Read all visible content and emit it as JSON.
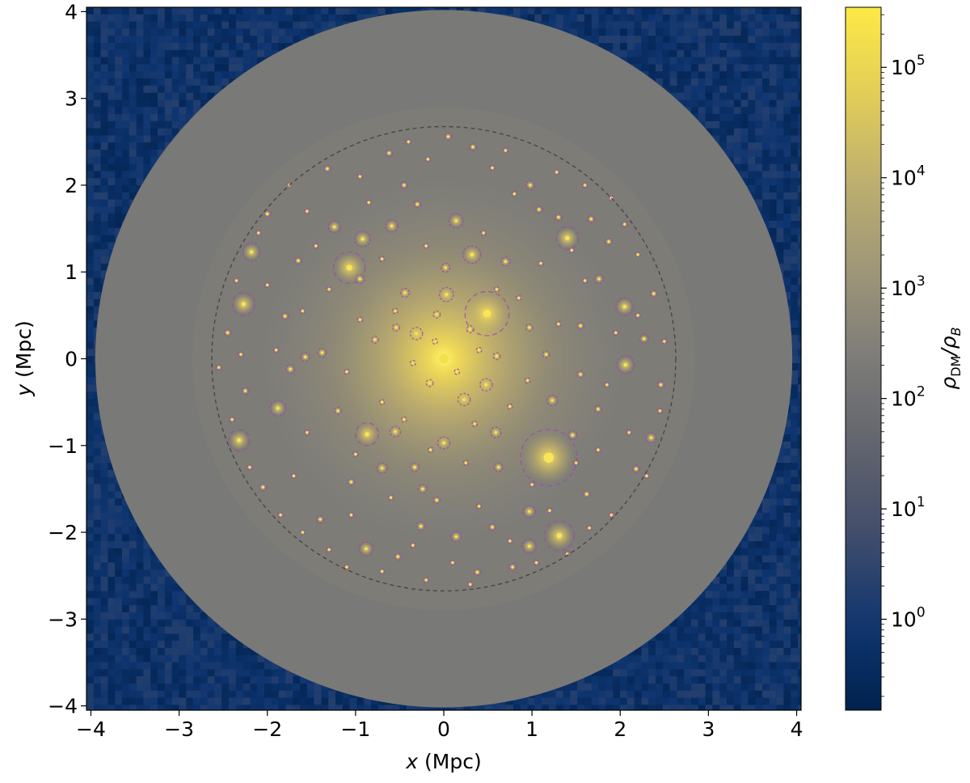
{
  "chart_data": {
    "type": "heatmap",
    "title": "",
    "xlabel": {
      "var": "x",
      "unit": " (Mpc)"
    },
    "ylabel": {
      "var": "y",
      "unit": " (Mpc)"
    },
    "xlim": [
      -4.05,
      4.05
    ],
    "ylim": [
      -4.05,
      4.05
    ],
    "x_ticks": [
      -4,
      -3,
      -2,
      -1,
      0,
      1,
      2,
      3,
      4
    ],
    "y_ticks": [
      -4,
      -3,
      -2,
      -1,
      0,
      1,
      2,
      3,
      4
    ],
    "x_tick_labels": [
      "−4",
      "−3",
      "−2",
      "−1",
      "0",
      "1",
      "2",
      "3",
      "4"
    ],
    "y_tick_labels": [
      "−4",
      "−3",
      "−2",
      "−1",
      "0",
      "1",
      "2",
      "3",
      "4"
    ],
    "colormap": "cividis",
    "colorbar": {
      "label": "ρDM/ρB",
      "scale": "log",
      "range": [
        0.15,
        350000
      ],
      "ticks": [
        1,
        10,
        100,
        1000,
        10000,
        100000
      ],
      "tick_labels": [
        {
          "base": "10",
          "exp": "0"
        },
        {
          "base": "10",
          "exp": "1"
        },
        {
          "base": "10",
          "exp": "2"
        },
        {
          "base": "10",
          "exp": "3"
        },
        {
          "base": "10",
          "exp": "4"
        },
        {
          "base": "10",
          "exp": "5"
        }
      ]
    },
    "background_density": 0.7,
    "outer_sphere": {
      "radius_mpc": 3.95,
      "density": 180
    },
    "virial_boundary": {
      "radius_mpc": 2.63,
      "style": "dashed",
      "color": "#444444"
    },
    "central_halo": {
      "x": 0.0,
      "y": 0.0,
      "peak_density": 200000
    },
    "subhalos": [
      {
        "x": 1.19,
        "y": -1.14,
        "r": 0.32
      },
      {
        "x": 0.49,
        "y": 0.52,
        "r": 0.25
      },
      {
        "x": -1.07,
        "y": 1.05,
        "r": 0.18
      },
      {
        "x": 1.31,
        "y": -2.04,
        "r": 0.17
      },
      {
        "x": 1.4,
        "y": 1.39,
        "r": 0.13
      },
      {
        "x": -2.27,
        "y": 0.63,
        "r": 0.13
      },
      {
        "x": -2.32,
        "y": -0.94,
        "r": 0.12
      },
      {
        "x": -0.87,
        "y": -0.87,
        "r": 0.13
      },
      {
        "x": -2.18,
        "y": 1.23,
        "r": 0.1
      },
      {
        "x": 2.05,
        "y": 0.6,
        "r": 0.1
      },
      {
        "x": 2.06,
        "y": -0.07,
        "r": 0.1
      },
      {
        "x": -1.88,
        "y": -0.57,
        "r": 0.09
      },
      {
        "x": 0.32,
        "y": 1.2,
        "r": 0.1
      },
      {
        "x": -0.92,
        "y": 1.38,
        "r": 0.09
      },
      {
        "x": -0.88,
        "y": -2.19,
        "r": 0.08
      },
      {
        "x": 0.97,
        "y": -2.16,
        "r": 0.08
      },
      {
        "x": 0.97,
        "y": -1.76,
        "r": 0.07
      },
      {
        "x": 0.03,
        "y": 0.74,
        "r": 0.08
      },
      {
        "x": 0.14,
        "y": 1.59,
        "r": 0.08
      },
      {
        "x": -0.59,
        "y": 1.53,
        "r": 0.07
      },
      {
        "x": -1.24,
        "y": 1.52,
        "r": 0.07
      },
      {
        "x": 0.23,
        "y": -0.47,
        "r": 0.07
      },
      {
        "x": 0.48,
        "y": -0.3,
        "r": 0.07
      },
      {
        "x": 0.14,
        "y": -2.05,
        "r": 0.06
      },
      {
        "x": 0.0,
        "y": -0.97,
        "r": 0.07
      },
      {
        "x": -0.31,
        "y": 0.29,
        "r": 0.07
      },
      {
        "x": 2.35,
        "y": -0.91,
        "r": 0.06
      },
      {
        "x": 1.23,
        "y": -0.48,
        "r": 0.06
      },
      {
        "x": -0.7,
        "y": -1.26,
        "r": 0.06
      },
      {
        "x": -0.55,
        "y": -0.84,
        "r": 0.06
      },
      {
        "x": 0.59,
        "y": -0.85,
        "r": 0.06
      },
      {
        "x": 0.98,
        "y": 2.0,
        "r": 0.05
      },
      {
        "x": 1.76,
        "y": 0.92,
        "r": 0.05
      },
      {
        "x": -1.38,
        "y": 0.07,
        "r": 0.05
      },
      {
        "x": -1.74,
        "y": -0.12,
        "r": 0.05
      },
      {
        "x": -0.26,
        "y": -1.93,
        "r": 0.05
      },
      {
        "x": 0.62,
        "y": -1.25,
        "r": 0.05
      },
      {
        "x": -0.24,
        "y": -1.5,
        "r": 0.05
      },
      {
        "x": 1.46,
        "y": -0.88,
        "r": 0.05
      },
      {
        "x": 2.27,
        "y": 0.23,
        "r": 0.05
      },
      {
        "x": -1.57,
        "y": 0.02,
        "r": 0.05
      },
      {
        "x": -0.44,
        "y": 0.76,
        "r": 0.05
      },
      {
        "x": 0.02,
        "y": 1.05,
        "r": 0.05
      },
      {
        "x": -0.95,
        "y": 0.92,
        "r": 0.05
      },
      {
        "x": 0.7,
        "y": 1.12,
        "r": 0.05
      },
      {
        "x": -0.33,
        "y": -1.25,
        "r": 0.05
      },
      {
        "x": 0.33,
        "y": 2.44,
        "r": 0.04
      },
      {
        "x": 0.05,
        "y": 2.56,
        "r": 0.04
      },
      {
        "x": -0.62,
        "y": 2.37,
        "r": 0.04
      },
      {
        "x": 1.67,
        "y": 1.61,
        "r": 0.04
      },
      {
        "x": -1.65,
        "y": 1.13,
        "r": 0.04
      },
      {
        "x": -1.8,
        "y": 0.49,
        "r": 0.04
      },
      {
        "x": 1.55,
        "y": 0.38,
        "r": 0.04
      },
      {
        "x": 1.16,
        "y": 0.05,
        "r": 0.04
      },
      {
        "x": 0.97,
        "y": 0.36,
        "r": 0.04
      },
      {
        "x": -0.08,
        "y": 0.51,
        "r": 0.04
      },
      {
        "x": 0.6,
        "y": 0.03,
        "r": 0.04
      },
      {
        "x": -0.54,
        "y": 0.36,
        "r": 0.04
      },
      {
        "x": -0.78,
        "y": 0.22,
        "r": 0.04
      },
      {
        "x": -1.2,
        "y": -0.6,
        "r": 0.04
      },
      {
        "x": -1.05,
        "y": -1.42,
        "r": 0.04
      },
      {
        "x": -0.52,
        "y": -2.28,
        "r": 0.04
      },
      {
        "x": 0.38,
        "y": -2.46,
        "r": 0.04
      },
      {
        "x": 0.78,
        "y": -2.4,
        "r": 0.04
      },
      {
        "x": 1.62,
        "y": -1.56,
        "r": 0.04
      },
      {
        "x": 2.18,
        "y": -1.27,
        "r": 0.04
      },
      {
        "x": 2.46,
        "y": -0.3,
        "r": 0.04
      },
      {
        "x": 2.38,
        "y": 0.75,
        "r": 0.04
      },
      {
        "x": 1.87,
        "y": 1.35,
        "r": 0.04
      },
      {
        "x": 1.3,
        "y": 1.63,
        "r": 0.04
      },
      {
        "x": -0.3,
        "y": 1.78,
        "r": 0.04
      },
      {
        "x": -1.32,
        "y": 2.19,
        "r": 0.04
      },
      {
        "x": -2.0,
        "y": 1.67,
        "r": 0.04
      },
      {
        "x": -2.45,
        "y": 0.3,
        "r": 0.04
      },
      {
        "x": -2.25,
        "y": -0.37,
        "r": 0.04
      },
      {
        "x": -2.05,
        "y": -1.48,
        "r": 0.04
      },
      {
        "x": -1.4,
        "y": -1.85,
        "r": 0.04
      },
      {
        "x": -0.08,
        "y": -1.63,
        "r": 0.04
      },
      {
        "x": 0.55,
        "y": -1.94,
        "r": 0.04
      },
      {
        "x": 1.75,
        "y": -0.58,
        "r": 0.04
      },
      {
        "x": 1.55,
        "y": -0.18,
        "r": 0.04
      },
      {
        "x": -0.16,
        "y": -0.28,
        "r": 0.04
      },
      {
        "x": 0.3,
        "y": 0.34,
        "r": 0.04
      },
      {
        "x": 1.08,
        "y": 1.72,
        "r": 0.04
      },
      {
        "x": -0.45,
        "y": 2.0,
        "r": 0.04
      },
      {
        "x": 1.28,
        "y": 2.15,
        "r": 0.03
      },
      {
        "x": -0.18,
        "y": 2.3,
        "r": 0.03
      },
      {
        "x": 0.7,
        "y": 2.4,
        "r": 0.03
      },
      {
        "x": -0.95,
        "y": 2.1,
        "r": 0.03
      },
      {
        "x": 1.9,
        "y": 1.85,
        "r": 0.03
      },
      {
        "x": -1.55,
        "y": 1.7,
        "r": 0.03
      },
      {
        "x": 2.2,
        "y": 1.2,
        "r": 0.03
      },
      {
        "x": -2.35,
        "y": 0.9,
        "r": 0.03
      },
      {
        "x": 2.5,
        "y": 0.2,
        "r": 0.03
      },
      {
        "x": -2.55,
        "y": -0.1,
        "r": 0.03
      },
      {
        "x": 2.45,
        "y": -0.6,
        "r": 0.03
      },
      {
        "x": -2.4,
        "y": -0.7,
        "r": 0.03
      },
      {
        "x": 2.3,
        "y": -1.35,
        "r": 0.03
      },
      {
        "x": -2.2,
        "y": -1.25,
        "r": 0.03
      },
      {
        "x": 1.9,
        "y": -1.8,
        "r": 0.03
      },
      {
        "x": -1.85,
        "y": -1.8,
        "r": 0.03
      },
      {
        "x": 1.4,
        "y": -2.25,
        "r": 0.03
      },
      {
        "x": -1.3,
        "y": -2.2,
        "r": 0.03
      },
      {
        "x": 0.75,
        "y": -2.1,
        "r": 0.03
      },
      {
        "x": -0.7,
        "y": -2.45,
        "r": 0.03
      },
      {
        "x": 0.1,
        "y": -2.35,
        "r": 0.03
      },
      {
        "x": -0.35,
        "y": -2.15,
        "r": 0.03
      },
      {
        "x": 1.0,
        "y": -1.45,
        "r": 0.03
      },
      {
        "x": -1.0,
        "y": -1.1,
        "r": 0.03
      },
      {
        "x": 1.5,
        "y": -1.2,
        "r": 0.03
      },
      {
        "x": -1.55,
        "y": -0.85,
        "r": 0.03
      },
      {
        "x": 1.85,
        "y": -0.3,
        "r": 0.03
      },
      {
        "x": -1.9,
        "y": 0.1,
        "r": 0.03
      },
      {
        "x": 1.95,
        "y": 0.3,
        "r": 0.03
      },
      {
        "x": -1.6,
        "y": 0.55,
        "r": 0.03
      },
      {
        "x": 1.6,
        "y": 0.9,
        "r": 0.03
      },
      {
        "x": -1.3,
        "y": 0.8,
        "r": 0.03
      },
      {
        "x": 1.1,
        "y": 1.1,
        "r": 0.03
      },
      {
        "x": -0.7,
        "y": 1.15,
        "r": 0.03
      },
      {
        "x": 0.45,
        "y": 1.45,
        "r": 0.03
      },
      {
        "x": -0.2,
        "y": 1.3,
        "r": 0.03
      },
      {
        "x": 0.85,
        "y": 0.7,
        "r": 0.03
      },
      {
        "x": -0.95,
        "y": 0.45,
        "r": 0.03
      },
      {
        "x": 1.3,
        "y": 0.4,
        "r": 0.03
      },
      {
        "x": -1.1,
        "y": -0.15,
        "r": 0.03
      },
      {
        "x": 0.95,
        "y": -0.25,
        "r": 0.03
      },
      {
        "x": -0.7,
        "y": -0.5,
        "r": 0.03
      },
      {
        "x": 0.75,
        "y": -0.55,
        "r": 0.03
      },
      {
        "x": -0.45,
        "y": -0.7,
        "r": 0.03
      },
      {
        "x": 0.35,
        "y": -0.75,
        "r": 0.03
      },
      {
        "x": -0.15,
        "y": -1.05,
        "r": 0.03
      },
      {
        "x": 0.25,
        "y": -1.2,
        "r": 0.03
      },
      {
        "x": -0.6,
        "y": -1.6,
        "r": 0.03
      },
      {
        "x": 0.4,
        "y": -1.7,
        "r": 0.03
      },
      {
        "x": -1.05,
        "y": -1.8,
        "r": 0.03
      },
      {
        "x": 1.2,
        "y": -1.75,
        "r": 0.03
      },
      {
        "x": -0.1,
        "y": 0.2,
        "r": 0.03
      },
      {
        "x": 0.15,
        "y": -0.15,
        "r": 0.03
      },
      {
        "x": -0.35,
        "y": -0.05,
        "r": 0.03
      },
      {
        "x": 0.4,
        "y": 0.1,
        "r": 0.03
      },
      {
        "x": -0.55,
        "y": 0.55,
        "r": 0.03
      },
      {
        "x": 0.6,
        "y": 0.8,
        "r": 0.03
      },
      {
        "x": -1.45,
        "y": 1.3,
        "r": 0.03
      },
      {
        "x": 1.45,
        "y": 1.25,
        "r": 0.03
      },
      {
        "x": -2.0,
        "y": 0.85,
        "r": 0.03
      },
      {
        "x": 2.1,
        "y": -0.85,
        "r": 0.03
      },
      {
        "x": -1.7,
        "y": -1.35,
        "r": 0.03
      },
      {
        "x": 1.75,
        "y": -1.05,
        "r": 0.03
      },
      {
        "x": -0.85,
        "y": 1.8,
        "r": 0.03
      },
      {
        "x": 0.8,
        "y": 1.9,
        "r": 0.03
      },
      {
        "x": -2.3,
        "y": 0.05,
        "r": 0.03
      },
      {
        "x": 2.2,
        "y": 0.5,
        "r": 0.03
      },
      {
        "x": -0.4,
        "y": 2.5,
        "r": 0.03
      },
      {
        "x": 0.55,
        "y": 2.2,
        "r": 0.03
      },
      {
        "x": 1.6,
        "y": 2.0,
        "r": 0.03
      },
      {
        "x": -1.75,
        "y": 2.0,
        "r": 0.03
      },
      {
        "x": 2.05,
        "y": 1.55,
        "r": 0.03
      },
      {
        "x": -2.1,
        "y": 1.45,
        "r": 0.03
      },
      {
        "x": 0.3,
        "y": -2.6,
        "r": 0.03
      },
      {
        "x": -0.2,
        "y": -2.55,
        "r": 0.03
      },
      {
        "x": 1.05,
        "y": -2.35,
        "r": 0.03
      },
      {
        "x": -1.1,
        "y": -2.4,
        "r": 0.03
      },
      {
        "x": 1.65,
        "y": -1.95,
        "r": 0.03
      },
      {
        "x": -1.6,
        "y": -2.0,
        "r": 0.03
      }
    ]
  }
}
